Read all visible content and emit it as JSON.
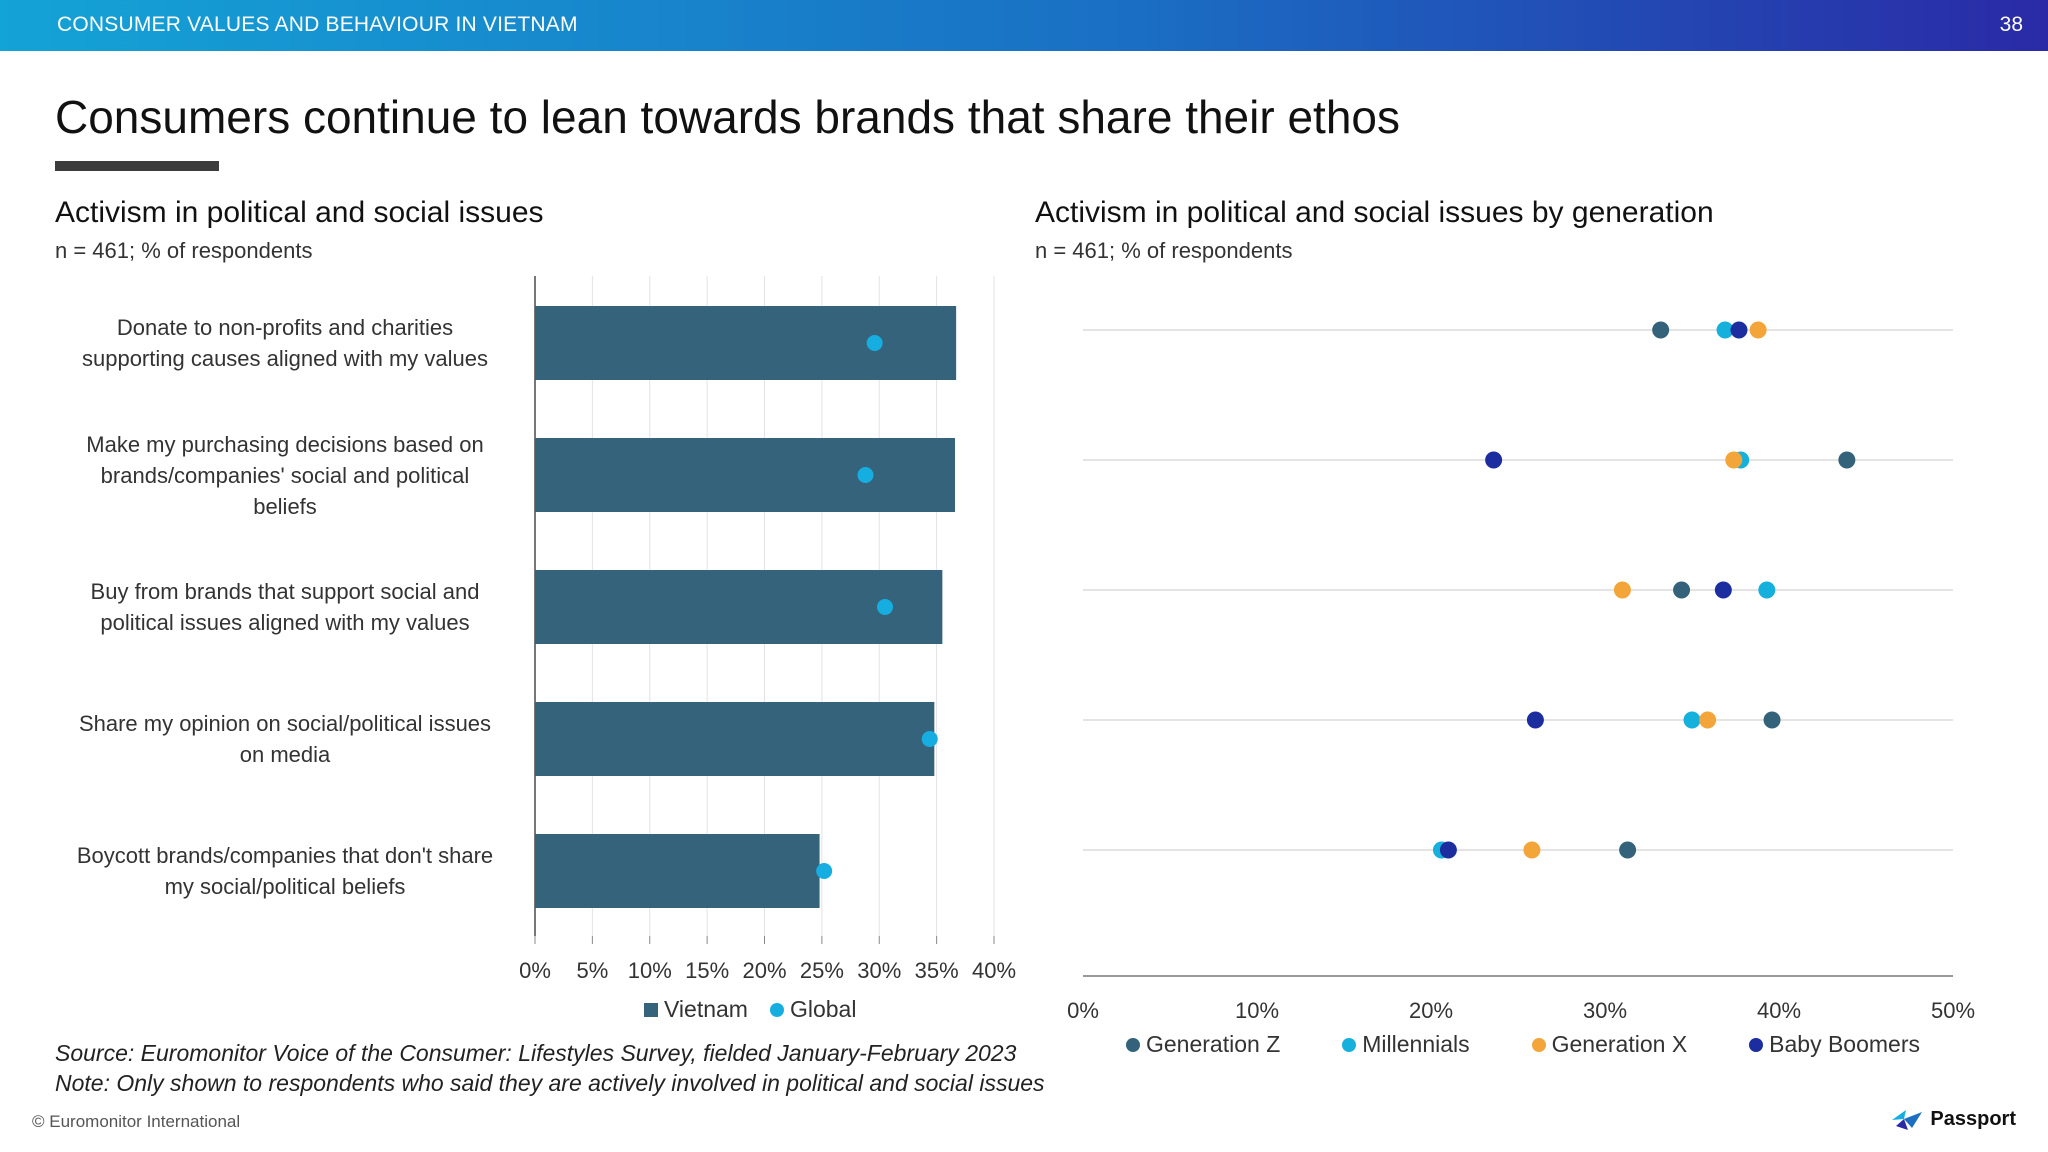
{
  "header": {
    "section": "CONSUMER VALUES AND BEHAVIOUR IN VIETNAM",
    "page_number": "38"
  },
  "title": "Consumers continue to lean towards brands that share their ethos",
  "footer": {
    "source": "Source: Euromonitor Voice of the Consumer: Lifestyles Survey, fielded January-February 2023",
    "note": "Note: Only shown to respondents who said they are actively involved in political and social issues",
    "copyright": "© Euromonitor International",
    "logo_text": "Passport"
  },
  "colors": {
    "vietnam": "#35637c",
    "global": "#16aee0",
    "gen_z": "#33627a",
    "millennials": "#15b0dc",
    "gen_x": "#f3a53a",
    "baby_boomers": "#1c2da0"
  },
  "chart_data": [
    {
      "type": "bar",
      "title": "Activism in political and social issues",
      "subtitle": "n = 461; % of respondents",
      "orientation": "horizontal",
      "categories": [
        [
          "Donate to non-profits and charities",
          "supporting causes aligned with my values"
        ],
        [
          "Make my purchasing decisions based on",
          "brands/companies' social and political",
          "beliefs"
        ],
        [
          "Buy from brands that support social and",
          "political issues aligned with my values"
        ],
        [
          "Share my opinion on social/political issues",
          "on media"
        ],
        [
          "Boycott brands/companies that don't share",
          "my social/political beliefs"
        ]
      ],
      "series": [
        {
          "name": "Vietnam",
          "mark": "bar",
          "values": [
            36.7,
            36.6,
            35.5,
            34.8,
            24.8
          ]
        },
        {
          "name": "Global",
          "mark": "dot",
          "values": [
            29.6,
            28.8,
            30.5,
            34.4,
            25.2
          ]
        }
      ],
      "xlim": [
        0,
        40
      ],
      "xticks": [
        "0%",
        "5%",
        "10%",
        "15%",
        "20%",
        "25%",
        "30%",
        "35%",
        "40%"
      ],
      "grid": true,
      "legend": "bottom"
    },
    {
      "type": "scatter",
      "title": "Activism in political and social issues by generation",
      "subtitle": "n = 461; % of respondents",
      "rows": 5,
      "series": [
        {
          "name": "Generation Z",
          "values": [
            33.2,
            43.9,
            34.4,
            39.6,
            31.3
          ]
        },
        {
          "name": "Millennials",
          "values": [
            36.9,
            37.8,
            39.3,
            35.0,
            20.6
          ]
        },
        {
          "name": "Generation X",
          "values": [
            38.8,
            37.4,
            31.0,
            35.9,
            25.8
          ]
        },
        {
          "name": "Baby Boomers",
          "values": [
            37.7,
            23.6,
            36.8,
            26.0,
            21.0
          ]
        }
      ],
      "xlim": [
        0,
        50
      ],
      "xticks": [
        "0%",
        "10%",
        "20%",
        "30%",
        "40%",
        "50%"
      ],
      "grid": "horizontal",
      "legend": "bottom"
    }
  ]
}
